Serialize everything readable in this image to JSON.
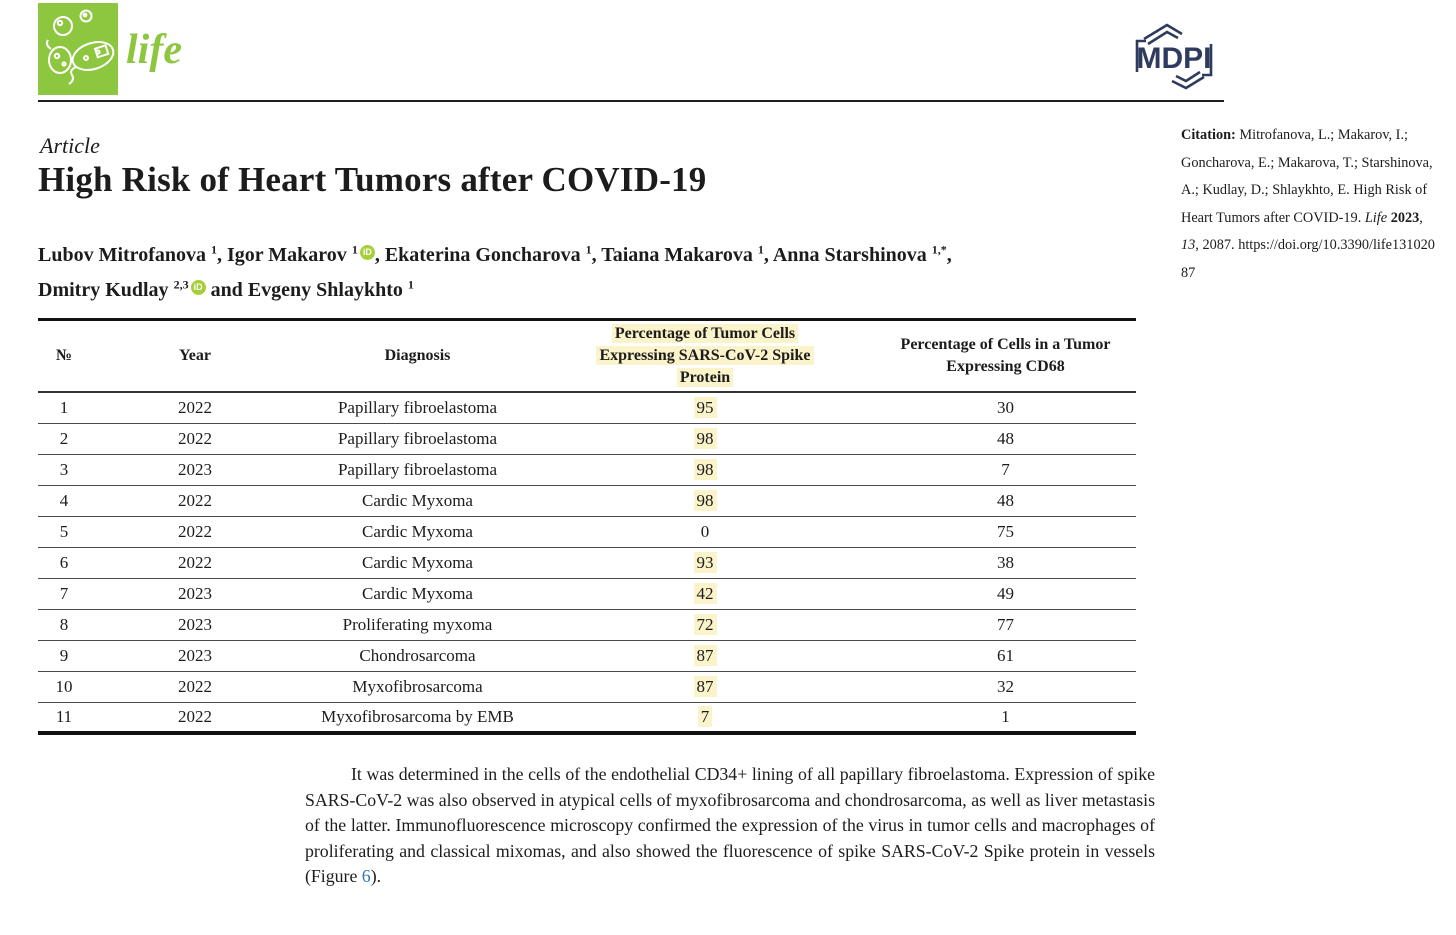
{
  "header": {
    "journal_logo_text": "life",
    "publisher_logo_text": "MDPI",
    "brand_green": "#8dc63f",
    "brand_navy": "#2e3b5e"
  },
  "article": {
    "kicker": "Article",
    "title": "High Risk of Heart Tumors after COVID-19",
    "orcid_icon_text": "iD",
    "authors": [
      {
        "name": "Lubov Mitrofanova",
        "sup": "1",
        "orcid": false,
        "sep": ", "
      },
      {
        "name": "Igor Makarov",
        "sup": "1",
        "orcid": true,
        "sep": ", "
      },
      {
        "name": "Ekaterina Goncharova",
        "sup": "1",
        "orcid": false,
        "sep": ", "
      },
      {
        "name": "Taiana Makarova",
        "sup": "1",
        "orcid": false,
        "sep": ", "
      },
      {
        "name": "Anna Starshinova",
        "sup": "1,*",
        "orcid": false,
        "sep": ",",
        "break_after": true
      },
      {
        "name": "Dmitry Kudlay",
        "sup": "2,3",
        "orcid": true,
        "sep": " and "
      },
      {
        "name": "Evgeny Shlaykhto",
        "sup": "1",
        "orcid": false,
        "sep": ""
      }
    ]
  },
  "citation": {
    "label": "Citation:",
    "segments": [
      {
        "text": " Mitrofanova, L.; Makarov, I.; Goncharova, E.; Makarova, T.; Starshinova, A.; Kudlay, D.; Shlaykhto, E. High Risk of Heart Tumors after COVID-19. ",
        "style": "normal"
      },
      {
        "text": "Life",
        "style": "italic"
      },
      {
        "text": " ",
        "style": "normal"
      },
      {
        "text": "2023",
        "style": "bold"
      },
      {
        "text": ", ",
        "style": "normal"
      },
      {
        "text": "13",
        "style": "italic"
      },
      {
        "text": ", 2087. ",
        "style": "normal"
      },
      {
        "text": "https://doi.org/10.3390/life13102087",
        "style": "normal",
        "class": "doi"
      }
    ]
  },
  "table": {
    "highlight_color": "#fbf3c9",
    "columns": [
      "№",
      "Year",
      "Diagnosis",
      "Percentage of Tumor Cells Expressing SARS-CoV-2 Spike Protein",
      "Percentage of Cells in a Tumor Expressing CD68"
    ],
    "rows": [
      {
        "no": "1",
        "year": "2022",
        "diagnosis": "Papillary fibroelastoma",
        "spike": "95",
        "spike_highlight": true,
        "cd68": "30"
      },
      {
        "no": "2",
        "year": "2022",
        "diagnosis": "Papillary fibroelastoma",
        "spike": "98",
        "spike_highlight": true,
        "cd68": "48"
      },
      {
        "no": "3",
        "year": "2023",
        "diagnosis": "Papillary fibroelastoma",
        "spike": "98",
        "spike_highlight": true,
        "cd68": "7"
      },
      {
        "no": "4",
        "year": "2022",
        "diagnosis": "Cardic Myxoma",
        "spike": "98",
        "spike_highlight": true,
        "cd68": "48"
      },
      {
        "no": "5",
        "year": "2022",
        "diagnosis": "Cardic Myxoma",
        "spike": "0",
        "spike_highlight": false,
        "cd68": "75"
      },
      {
        "no": "6",
        "year": "2022",
        "diagnosis": "Cardic Myxoma",
        "spike": "93",
        "spike_highlight": true,
        "cd68": "38"
      },
      {
        "no": "7",
        "year": "2023",
        "diagnosis": "Cardic Myxoma",
        "spike": "42",
        "spike_highlight": true,
        "cd68": "49"
      },
      {
        "no": "8",
        "year": "2023",
        "diagnosis": "Proliferating myxoma",
        "spike": "72",
        "spike_highlight": true,
        "cd68": "77"
      },
      {
        "no": "9",
        "year": "2023",
        "diagnosis": "Chondrosarcoma",
        "spike": "87",
        "spike_highlight": true,
        "cd68": "61"
      },
      {
        "no": "10",
        "year": "2022",
        "diagnosis": "Myxofibrosarcoma",
        "spike": "87",
        "spike_highlight": true,
        "cd68": "32"
      },
      {
        "no": "11",
        "year": "2022",
        "diagnosis": "Myxofibrosarcoma by EMB",
        "spike": "7",
        "spike_highlight": true,
        "cd68": "1"
      }
    ]
  },
  "paragraph": {
    "text_before_link": "It was determined in the cells of the endothelial CD34+ lining of all papillary fibroelastoma. Expression of spike SARS-CoV-2 was also observed in atypical cells of myxofibrosarcoma and chondrosarcoma, as well as liver metastasis of the latter. Immunofluorescence microscopy confirmed the expression of the virus in tumor cells and macrophages of proliferating and classical mixomas, and also showed the fluorescence of spike SARS-CoV-2 Spike protein in vessels (Figure ",
    "link_text": "6",
    "text_after_link": ").",
    "link_color": "#3079b5"
  }
}
